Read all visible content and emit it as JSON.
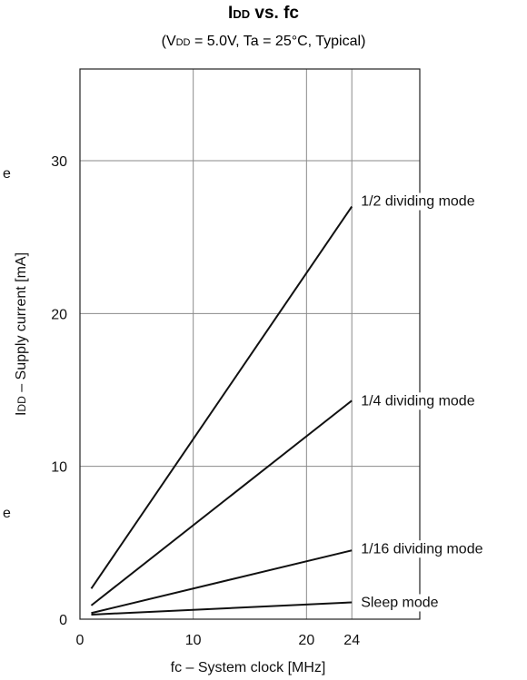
{
  "chart_data": {
    "type": "line",
    "title": {
      "main_prefix": "I",
      "main_subscript": "DD",
      "main_suffix": " vs. fc",
      "sub_open": "(V",
      "sub_subscript": "DD",
      "sub_rest": " = 5.0V, Ta = 25°C, Typical)"
    },
    "xlabel": "fc – System clock [MHz]",
    "ylabel": {
      "prefix": "I",
      "subscript": "DD",
      "suffix": " – Supply current [mA]"
    },
    "xlim": [
      0,
      30
    ],
    "ylim": [
      0,
      36
    ],
    "x_ticks": [
      {
        "value": 0,
        "label": "0"
      },
      {
        "value": 10,
        "label": "10"
      },
      {
        "value": 20,
        "label": "20"
      },
      {
        "value": 24,
        "label": "24"
      }
    ],
    "y_ticks": [
      {
        "value": 0,
        "label": "0"
      },
      {
        "value": 10,
        "label": "10"
      },
      {
        "value": 20,
        "label": "20"
      },
      {
        "value": 30,
        "label": "30"
      }
    ],
    "x_gridlines": [
      10,
      20,
      24
    ],
    "y_gridlines": [
      10,
      20,
      30
    ],
    "series": [
      {
        "name": "1/2 dividing mode",
        "x": [
          1,
          24
        ],
        "y": [
          2.0,
          27.0
        ]
      },
      {
        "name": "1/4 dividing mode",
        "x": [
          1,
          24
        ],
        "y": [
          0.9,
          14.3
        ]
      },
      {
        "name": "1/16 dividing mode",
        "x": [
          1,
          24
        ],
        "y": [
          0.4,
          4.5
        ]
      },
      {
        "name": "Sleep mode",
        "x": [
          1,
          24
        ],
        "y": [
          0.3,
          1.1
        ]
      }
    ],
    "left_edge_glyphs": [
      "e",
      "e"
    ],
    "grid": true
  },
  "colors": {
    "line": "#111111",
    "grid": "#8a8a8a",
    "background": "#ffffff"
  }
}
